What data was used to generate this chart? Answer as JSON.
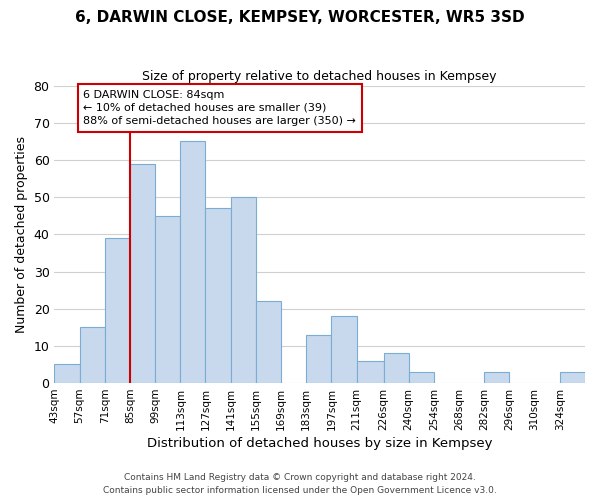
{
  "title": "6, DARWIN CLOSE, KEMPSEY, WORCESTER, WR5 3SD",
  "subtitle": "Size of property relative to detached houses in Kempsey",
  "xlabel": "Distribution of detached houses by size in Kempsey",
  "ylabel": "Number of detached properties",
  "bar_color": "#c8d9ee",
  "bar_edge_color": "#7aadd4",
  "background_color": "#ffffff",
  "grid_color": "#d0d0d0",
  "bin_labels": [
    "43sqm",
    "57sqm",
    "71sqm",
    "85sqm",
    "99sqm",
    "113sqm",
    "127sqm",
    "141sqm",
    "155sqm",
    "169sqm",
    "183sqm",
    "197sqm",
    "211sqm",
    "226sqm",
    "240sqm",
    "254sqm",
    "268sqm",
    "282sqm",
    "296sqm",
    "310sqm",
    "324sqm"
  ],
  "bin_edges": [
    43,
    57,
    71,
    85,
    99,
    113,
    127,
    141,
    155,
    169,
    183,
    197,
    211,
    226,
    240,
    254,
    268,
    282,
    296,
    310,
    324,
    338
  ],
  "values": [
    5,
    15,
    39,
    59,
    45,
    65,
    47,
    50,
    22,
    0,
    13,
    18,
    6,
    8,
    3,
    0,
    0,
    3,
    0,
    0,
    3
  ],
  "ylim": [
    0,
    80
  ],
  "yticks": [
    0,
    10,
    20,
    30,
    40,
    50,
    60,
    70,
    80
  ],
  "vline_x": 85,
  "vline_color": "#cc0000",
  "annotation_title": "6 DARWIN CLOSE: 84sqm",
  "annotation_line1": "← 10% of detached houses are smaller (39)",
  "annotation_line2": "88% of semi-detached houses are larger (350) →",
  "annotation_box_color": "#ffffff",
  "annotation_box_edge": "#cc0000",
  "footer_line1": "Contains HM Land Registry data © Crown copyright and database right 2024.",
  "footer_line2": "Contains public sector information licensed under the Open Government Licence v3.0."
}
